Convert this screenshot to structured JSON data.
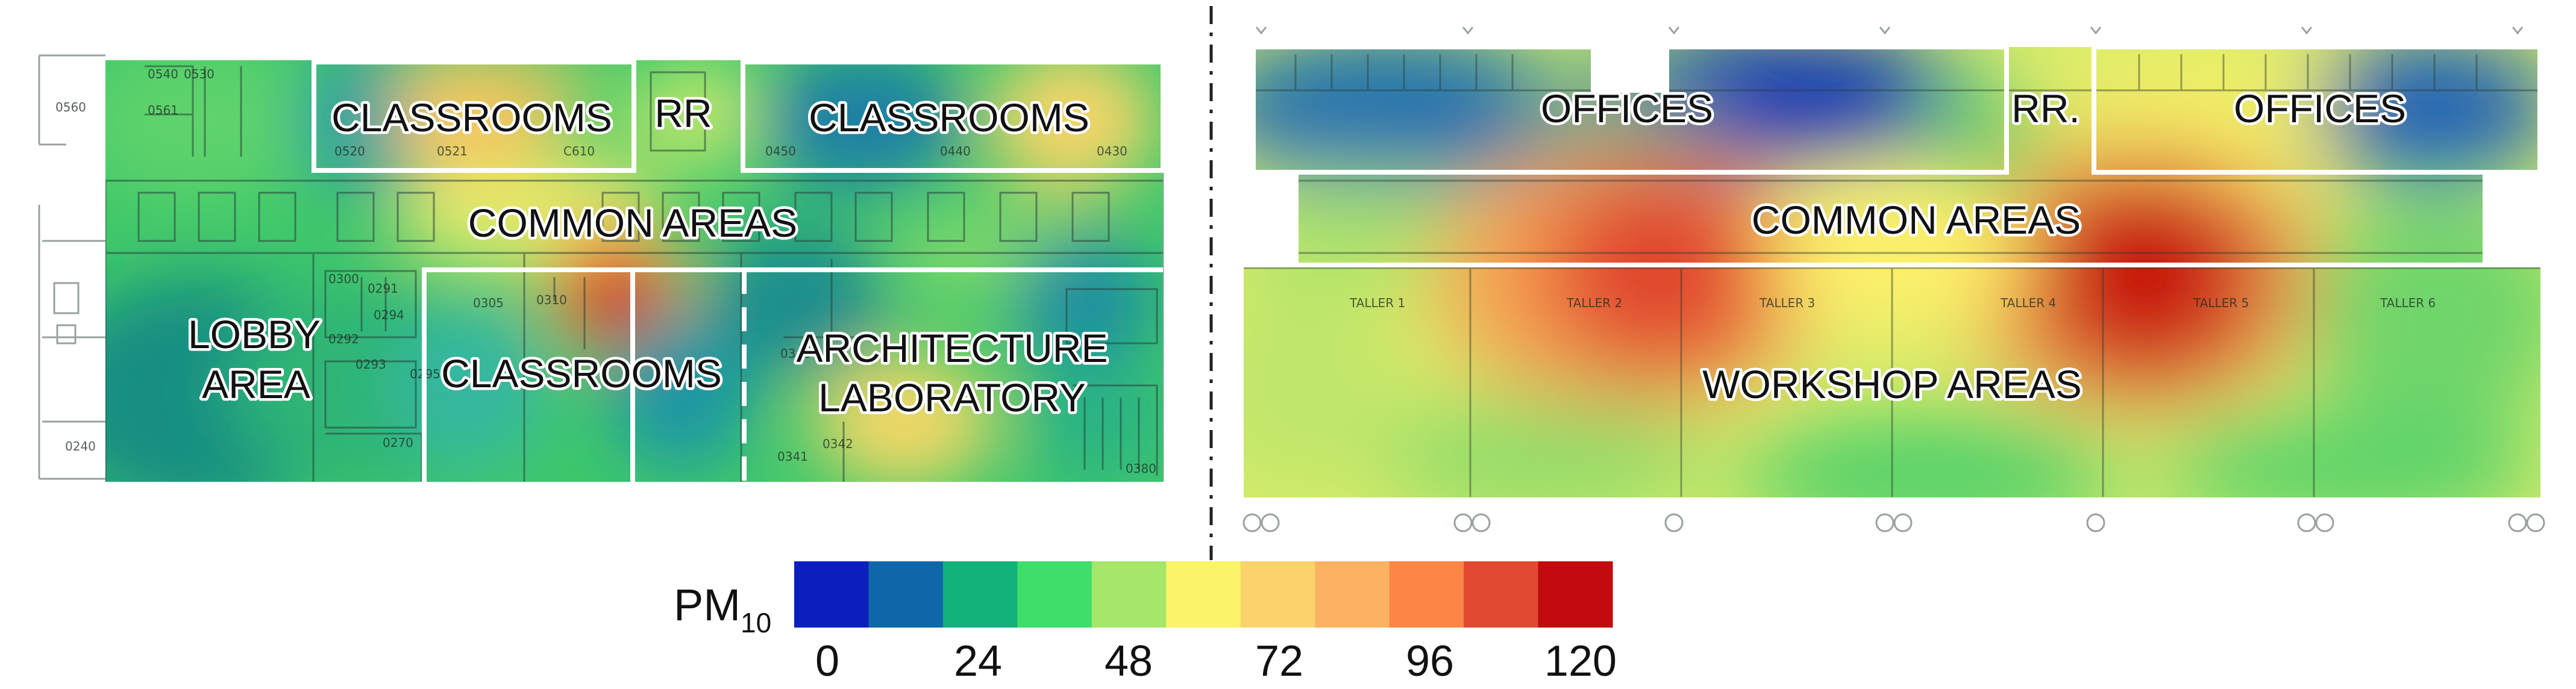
{
  "colors": {
    "scale": [
      "#0b1fbf",
      "#0f67a9",
      "#13b27b",
      "#3fdd6a",
      "#a6e66a",
      "#fbf368",
      "#fad36a",
      "#fbb263",
      "#fb8646",
      "#e14a30",
      "#c20b0f"
    ]
  },
  "legend": {
    "title_main": "PM",
    "title_sub": "10",
    "ticks": [
      "0",
      "24",
      "48",
      "72",
      "96",
      "120"
    ]
  },
  "left_plan": {
    "zones": [
      "CLASSROOMS",
      "RR",
      "CLASSROOMS",
      "COMMON AREAS",
      "LOBBY",
      "AREA",
      "CLASSROOMS",
      "ARCHITECTURE",
      "LABORATORY"
    ],
    "room_numbers": [
      "0560",
      "0540",
      "0530",
      "0561",
      "0520",
      "0521",
      "C610",
      "0450",
      "0440",
      "0430",
      "0300",
      "0305",
      "0310",
      "0291",
      "0292",
      "0293",
      "0294",
      "0295",
      "0270",
      "0240",
      "0346",
      "0342",
      "0341",
      "0380"
    ]
  },
  "right_plan": {
    "zones": [
      "OFFICES",
      "RR.",
      "OFFICES",
      "COMMON AREAS",
      "WORKSHOP AREAS"
    ],
    "workshop_labels": [
      "TALLER 1",
      "TALLER 2",
      "TALLER 3",
      "TALLER 4",
      "TALLER 5",
      "TALLER 6"
    ]
  }
}
